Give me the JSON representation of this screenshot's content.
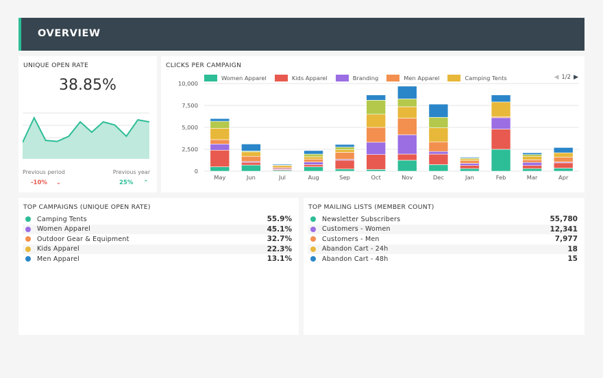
{
  "header": {
    "title": "OVERVIEW"
  },
  "open_rate": {
    "title": "UNIQUE OPEN RATE",
    "value": "38.85%",
    "previous_period_label": "Previous period",
    "previous_year_label": "Previous year",
    "previous_period_delta": "-10%",
    "previous_year_delta": "25%",
    "sparkline_values": [
      48,
      60,
      49,
      48.5,
      51,
      58,
      53,
      58,
      56.5,
      51,
      59,
      58
    ],
    "sparkline_range": [
      40,
      62
    ]
  },
  "clicks": {
    "title": "CLICKS PER CAMPAIGN",
    "pager": "1/2",
    "chart_data": {
      "type": "bar",
      "stacked": true,
      "categories": [
        "May",
        "Jun",
        "Jul",
        "Aug",
        "Sep",
        "Oct",
        "Nov",
        "Dec",
        "Jan",
        "Feb",
        "Mar",
        "Apr"
      ],
      "ylim": [
        0,
        10000
      ],
      "yticks": [
        "0",
        "2,500",
        "5,000",
        "7,500",
        "10,000"
      ],
      "ytick_values": [
        0,
        2500,
        5000,
        7500,
        10000
      ],
      "legend_position": "top",
      "grid": true,
      "series": [
        {
          "name": "Women Apparel",
          "color": "#2dbd97",
          "values": [
            500,
            700,
            100,
            500,
            250,
            200,
            1250,
            750,
            300,
            2500,
            300,
            350
          ]
        },
        {
          "name": "Kids Apparel",
          "color": "#e85a4f",
          "values": [
            1900,
            300,
            100,
            250,
            1000,
            1700,
            700,
            1200,
            350,
            2300,
            350,
            600
          ]
        },
        {
          "name": "Branding",
          "color": "#9b6ee3",
          "values": [
            700,
            100,
            100,
            300,
            100,
            1400,
            2200,
            300,
            250,
            1300,
            350,
            100
          ]
        },
        {
          "name": "Men Apparel",
          "color": "#f3904f",
          "values": [
            500,
            600,
            150,
            300,
            800,
            1700,
            1900,
            1100,
            300,
            100,
            300,
            550
          ]
        },
        {
          "name": "Camping Tents",
          "color": "#e8b83a",
          "values": [
            1300,
            500,
            200,
            300,
            300,
            1500,
            1300,
            1600,
            200,
            1700,
            400,
            500
          ]
        },
        {
          "name": "",
          "color": "#b4c94b",
          "values": [
            800,
            100,
            50,
            300,
            300,
            1600,
            900,
            1200,
            100,
            0,
            200,
            0
          ]
        },
        {
          "name": "",
          "color": "#2a86c9",
          "values": [
            300,
            800,
            100,
            400,
            300,
            600,
            1450,
            1500,
            100,
            800,
            200,
            600
          ]
        }
      ]
    }
  },
  "top_campaigns": {
    "title": "TOP CAMPAIGNS (UNIQUE OPEN RATE)",
    "rows": [
      {
        "name": "Camping Tents",
        "value": "55.9%",
        "color": "#2dbd97"
      },
      {
        "name": "Women Apparel",
        "value": "45.1%",
        "color": "#9b6ee3"
      },
      {
        "name": "Outdoor Gear & Equipment",
        "value": "32.7%",
        "color": "#f3904f"
      },
      {
        "name": "Kids Apparel",
        "value": "22.3%",
        "color": "#e8b83a"
      },
      {
        "name": "Men Apparel",
        "value": "13.1%",
        "color": "#2a86c9"
      }
    ]
  },
  "top_lists": {
    "title": "TOP MAILING LISTS (MEMBER COUNT)",
    "rows": [
      {
        "name": "Newsletter Subscribers",
        "value": "55,780",
        "color": "#2dbd97"
      },
      {
        "name": "Customers - Women",
        "value": "12,341",
        "color": "#9b6ee3"
      },
      {
        "name": "Customers - Men",
        "value": "7,977",
        "color": "#f3904f"
      },
      {
        "name": "Abandon Cart - 24h",
        "value": "18",
        "color": "#e8b83a"
      },
      {
        "name": "Abandon Cart - 48h",
        "value": "15",
        "color": "#2a86c9"
      }
    ]
  },
  "colors": {
    "header_bg": "#36454f",
    "accent": "#2dbd97",
    "negative": "#e85a4f",
    "positive": "#2dbd97"
  }
}
